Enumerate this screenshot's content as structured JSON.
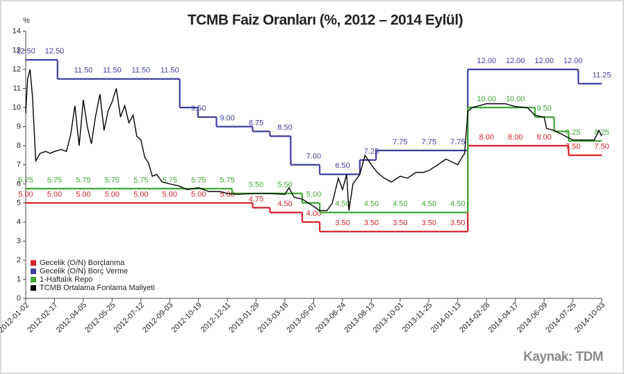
{
  "chart_data": {
    "type": "line",
    "title": "TCMB Faiz Oranları (%, 2012 – 2014 Eylül)",
    "y_label": "%",
    "source": "Kaynak: TDM",
    "xlim": [
      "2012-01-02",
      "2014-10-03"
    ],
    "xticks": [
      "2012-01-02",
      "2012-02-17",
      "2012-04-05",
      "2012-05-25",
      "2012-07-12",
      "2012-09-03",
      "2012-10-19",
      "2012-12-11",
      "2013-01-29",
      "2013-03-18",
      "2013-05-07",
      "2013-06-24",
      "2013-08-13",
      "2013-10-01",
      "2013-11-25",
      "2014-01-13",
      "2014-02-28",
      "2014-04-17",
      "2014-06-09",
      "2014-07-25",
      "2014-10-03"
    ],
    "ylim": [
      0,
      14
    ],
    "yticks": [
      0,
      1,
      2,
      3,
      4,
      5,
      6,
      7,
      8,
      9,
      10,
      11,
      12,
      13,
      14
    ],
    "legend": "bottom-left",
    "series": [
      {
        "name": "Gecelik (O/N) Borçlanma",
        "color": "#d42027",
        "step": true,
        "x": [
          "2012-01-02",
          "2013-01-23",
          "2013-02-21",
          "2013-04-17",
          "2013-05-17",
          "2014-01-29",
          "2014-07-18"
        ],
        "values": [
          5,
          4.75,
          4.5,
          4,
          3.5,
          8,
          7.5
        ],
        "value_labels": [
          "5.00",
          "4.75",
          "4.50",
          "4.00",
          "3.50",
          "8.00",
          "7.50"
        ]
      },
      {
        "name": "Gecelik (O/N) Borç Verme",
        "color": "#3b3d9e",
        "step": true,
        "x": [
          "2012-01-02",
          "2012-02-22",
          "2012-09-19",
          "2012-10-18",
          "2012-11-21",
          "2013-01-23",
          "2013-02-21",
          "2013-03-28",
          "2013-05-17",
          "2013-07-24",
          "2013-08-21",
          "2014-01-29",
          "2014-08-07"
        ],
        "values": [
          12.5,
          11.5,
          10,
          9.5,
          9,
          8.75,
          8.5,
          7,
          6.5,
          7.25,
          7.75,
          12,
          11.25
        ],
        "value_labels": [
          "12.50",
          "11.50",
          "10.00",
          "9.50",
          "9.00",
          "8.75",
          "8.50",
          "7.00",
          "6.50",
          "7.25",
          "7.75",
          "12.00",
          "11.25"
        ]
      },
      {
        "name": "1-Haftalık Repo",
        "color": "#3fa535",
        "step": true,
        "x": [
          "2012-01-02",
          "2012-12-19",
          "2013-04-17",
          "2013-05-17",
          "2014-01-29",
          "2014-05-23",
          "2014-06-25",
          "2014-07-18"
        ],
        "values": [
          5.75,
          5.5,
          5,
          4.5,
          10,
          9.5,
          8.75,
          8.25
        ],
        "value_labels": [
          "5.75",
          "5.50",
          "5.00",
          "4.50",
          "10.00",
          "9.50",
          "8.75",
          "8.25"
        ]
      },
      {
        "name": "TCMB Ortalama Fonlama Maliyeti",
        "color": "#000000",
        "step": false,
        "x": [
          "2012-01-02",
          "2012-01-05",
          "2012-01-09",
          "2012-01-13",
          "2012-01-18",
          "2012-01-25",
          "2012-02-03",
          "2012-02-10",
          "2012-02-17",
          "2012-02-28",
          "2012-03-08",
          "2012-03-15",
          "2012-03-22",
          "2012-03-29",
          "2012-04-05",
          "2012-04-12",
          "2012-04-19",
          "2012-04-26",
          "2012-05-04",
          "2012-05-11",
          "2012-05-18",
          "2012-05-25",
          "2012-06-01",
          "2012-06-08",
          "2012-06-15",
          "2012-06-22",
          "2012-06-29",
          "2012-07-05",
          "2012-07-12",
          "2012-07-19",
          "2012-07-26",
          "2012-08-02",
          "2012-08-10",
          "2012-08-20",
          "2012-09-03",
          "2012-09-17",
          "2012-10-01",
          "2012-10-19",
          "2012-11-07",
          "2012-11-27",
          "2012-12-11",
          "2012-12-28",
          "2013-01-29",
          "2013-02-20",
          "2013-03-18",
          "2013-03-25",
          "2013-04-03",
          "2013-04-17",
          "2013-05-03",
          "2013-05-17",
          "2013-05-29",
          "2013-06-07",
          "2013-06-17",
          "2013-06-24",
          "2013-07-01",
          "2013-07-05",
          "2013-07-12",
          "2013-07-24",
          "2013-08-02",
          "2013-08-13",
          "2013-08-23",
          "2013-09-04",
          "2013-09-16",
          "2013-10-01",
          "2013-10-15",
          "2013-10-31",
          "2013-11-14",
          "2013-11-25",
          "2013-12-10",
          "2013-12-24",
          "2014-01-13",
          "2014-01-20",
          "2014-01-24",
          "2014-01-29",
          "2014-02-05",
          "2014-02-28",
          "2014-03-31",
          "2014-04-17",
          "2014-05-09",
          "2014-05-23",
          "2014-06-09",
          "2014-06-13",
          "2014-06-25",
          "2014-07-25",
          "2014-08-20",
          "2014-09-15",
          "2014-09-26",
          "2014-10-03"
        ],
        "values": [
          9.7,
          11.5,
          12.0,
          10.5,
          7.2,
          7.6,
          7.7,
          7.6,
          7.7,
          7.8,
          7.7,
          8.6,
          10.1,
          8.0,
          10.4,
          9.0,
          8.1,
          9.5,
          10.7,
          8.8,
          9.8,
          10.3,
          11.0,
          9.5,
          10.1,
          9.2,
          9.6,
          8.5,
          8.3,
          7.4,
          7.1,
          6.4,
          6.5,
          6.1,
          6.0,
          5.9,
          5.7,
          5.8,
          5.6,
          5.6,
          5.5,
          5.45,
          5.5,
          5.5,
          5.45,
          5.8,
          5.3,
          5.2,
          4.9,
          4.6,
          4.6,
          5.0,
          6.3,
          5.7,
          6.5,
          4.6,
          6.0,
          6.5,
          7.5,
          7.0,
          6.6,
          6.3,
          6.1,
          6.4,
          6.3,
          6.6,
          6.6,
          6.7,
          7.0,
          7.3,
          7.0,
          7.4,
          7.6,
          9.8,
          10.0,
          10.2,
          10.2,
          10.05,
          10.0,
          9.6,
          9.5,
          8.9,
          8.8,
          8.3,
          8.3,
          8.3,
          8.8,
          8.5
        ]
      }
    ]
  }
}
